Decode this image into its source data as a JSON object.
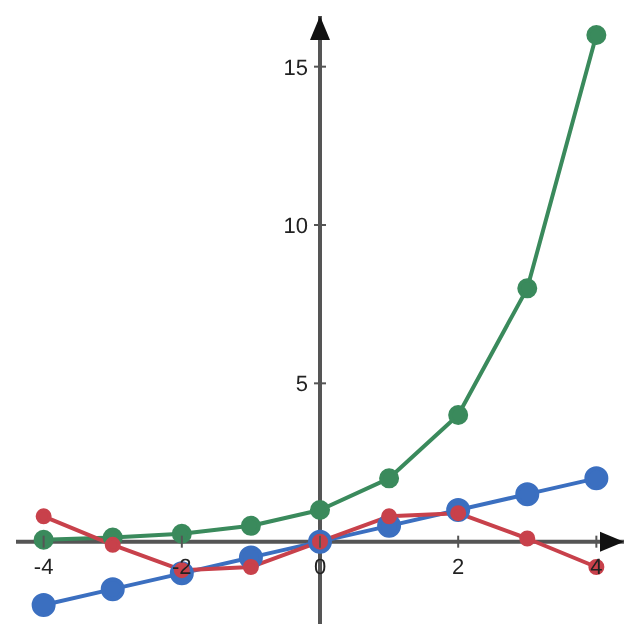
{
  "chart_data": {
    "type": "line",
    "x": [
      -4,
      -3,
      -2,
      -1,
      0,
      1,
      2,
      3,
      4
    ],
    "series": [
      {
        "color": "#3b6fc0",
        "values": [
          -2,
          -1.5,
          -1,
          -0.5,
          0,
          0.5,
          1,
          1.5,
          2
        ]
      },
      {
        "color": "#3a8a5c",
        "values": [
          0.06,
          0.13,
          0.25,
          0.5,
          1,
          2,
          4,
          8,
          16
        ]
      },
      {
        "color": "#c8414b",
        "values": [
          0.8,
          -0.1,
          -0.9,
          -0.8,
          0,
          0.8,
          0.9,
          0.1,
          -0.8
        ]
      }
    ],
    "xlim": [
      -4.4,
      4.4
    ],
    "ylim": [
      -2.6,
      16.6
    ],
    "xticks": [
      -4,
      -2,
      0,
      2,
      4
    ],
    "yticks": [
      5,
      10,
      15
    ],
    "grid": false,
    "legend": false,
    "marker": "circle",
    "line_style": "solid"
  }
}
